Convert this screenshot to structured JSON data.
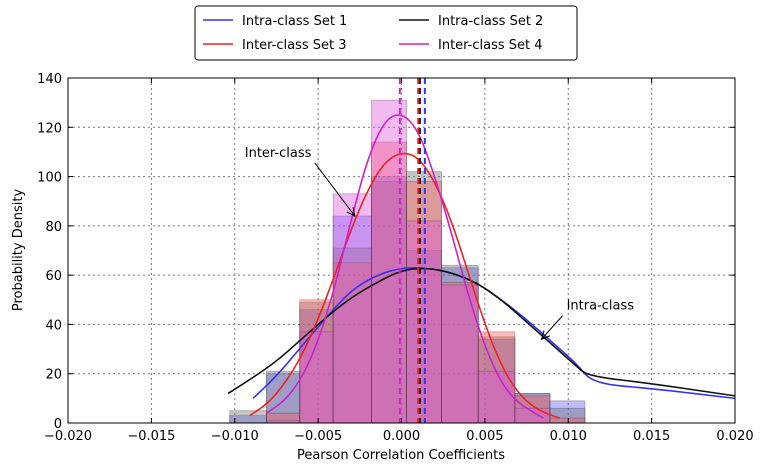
{
  "chart_data": {
    "type": "histogram-kde",
    "xlabel": "Pearson Correlation Coefficients",
    "ylabel": "Probability Density",
    "xlim": [
      -0.02,
      0.02
    ],
    "ylim": [
      0,
      140
    ],
    "grid": true,
    "legend_position": "top-center",
    "xticks": [
      -0.02,
      -0.015,
      -0.01,
      -0.005,
      0.0,
      0.005,
      0.01,
      0.015,
      0.02
    ],
    "xtick_labels": [
      "−0.020",
      "−0.015",
      "−0.010",
      "−0.005",
      "0.000",
      "0.005",
      "0.010",
      "0.015",
      "0.020"
    ],
    "yticks": [
      0,
      20,
      40,
      60,
      80,
      100,
      120,
      140
    ],
    "ytick_labels": [
      "0",
      "20",
      "40",
      "60",
      "80",
      "100",
      "120",
      "140"
    ],
    "annotations": [
      {
        "text": "Inter-class",
        "x": -0.0094,
        "y": 108,
        "arrow_to": [
          -0.0028,
          84
        ]
      },
      {
        "text": "Intra-class",
        "x": 0.0099,
        "y": 46,
        "arrow_to": [
          0.0084,
          34
        ]
      }
    ],
    "series": [
      {
        "name": "Intra-class Set 1",
        "color": "#3333ee",
        "fill": "#5a5aff",
        "mean_line": 0.0014,
        "bins": [
          [
            -0.0103,
            -0.0081,
            3
          ],
          [
            -0.0081,
            -0.0061,
            20
          ],
          [
            -0.0061,
            -0.0041,
            46
          ],
          [
            -0.0041,
            -0.0018,
            84
          ],
          [
            -0.0018,
            0.0003,
            100
          ],
          [
            0.0003,
            0.0024,
            70
          ],
          [
            0.0024,
            0.0046,
            63
          ],
          [
            0.0046,
            0.0068,
            34
          ],
          [
            0.0068,
            0.0089,
            12
          ],
          [
            0.0089,
            0.011,
            9
          ]
        ],
        "kde_x": [
          -0.0089,
          -0.0075,
          -0.006,
          -0.0045,
          -0.003,
          -0.0015,
          0.0,
          0.0015,
          0.003,
          0.0045,
          0.006,
          0.0075,
          0.009,
          0.0105,
          0.0115,
          0.015,
          0.02
        ],
        "kde_y": [
          10,
          19,
          31,
          43,
          54,
          60,
          63,
          63,
          61,
          57,
          50,
          42,
          33,
          24,
          16,
          14,
          10
        ]
      },
      {
        "name": "Intra-class Set 2",
        "color": "#111111",
        "fill": "#6e6e6e",
        "mean_line": 0.0011,
        "bins": [
          [
            -0.0103,
            -0.0081,
            5
          ],
          [
            -0.0081,
            -0.0061,
            21
          ],
          [
            -0.0061,
            -0.0041,
            49
          ],
          [
            -0.0041,
            -0.0018,
            71
          ],
          [
            -0.0018,
            0.0003,
            98
          ],
          [
            0.0003,
            0.0024,
            102
          ],
          [
            0.0024,
            0.0046,
            64
          ],
          [
            0.0046,
            0.0068,
            35
          ],
          [
            0.0068,
            0.0089,
            12
          ],
          [
            0.0089,
            0.011,
            6
          ]
        ],
        "kde_x": [
          -0.0104,
          -0.009,
          -0.0075,
          -0.006,
          -0.0045,
          -0.003,
          -0.0015,
          0.0,
          0.0015,
          0.003,
          0.0045,
          0.006,
          0.0075,
          0.009,
          0.0105,
          0.0112,
          0.015,
          0.02
        ],
        "kde_y": [
          12,
          18,
          25,
          34,
          43,
          51,
          57,
          62,
          63,
          61,
          57,
          50,
          41,
          32,
          23,
          19,
          16,
          11
        ]
      },
      {
        "name": "Inter-class Set 3",
        "color": "#ee2222",
        "fill": "#ff5a5a",
        "mean_line": 0.001,
        "bins": [
          [
            -0.0081,
            -0.0061,
            4
          ],
          [
            -0.0061,
            -0.0041,
            50
          ],
          [
            -0.0041,
            -0.0018,
            65
          ],
          [
            -0.0018,
            0.0003,
            114
          ],
          [
            0.0003,
            0.0024,
            98
          ],
          [
            0.0024,
            0.0046,
            57
          ],
          [
            0.0046,
            0.0068,
            37
          ],
          [
            0.0068,
            0.0089,
            11
          ],
          [
            0.0089,
            0.011,
            2
          ]
        ],
        "kde_x": [
          -0.0091,
          -0.008,
          -0.007,
          -0.006,
          -0.005,
          -0.004,
          -0.003,
          -0.002,
          -0.001,
          0.0,
          0.001,
          0.002,
          0.003,
          0.004,
          0.005,
          0.006,
          0.007,
          0.008,
          0.009,
          0.0095
        ],
        "kde_y": [
          3,
          8,
          16,
          27,
          42,
          60,
          79,
          95,
          106,
          110,
          108,
          98,
          82,
          61,
          40,
          23,
          12,
          6,
          3,
          2
        ]
      },
      {
        "name": "Inter-class Set 4",
        "color": "#cc22cc",
        "fill": "#dd55dd",
        "mean_line": -0.0001,
        "bins": [
          [
            -0.0081,
            -0.0061,
            1
          ],
          [
            -0.0061,
            -0.0041,
            37
          ],
          [
            -0.0041,
            -0.0018,
            93
          ],
          [
            -0.0018,
            0.0003,
            131
          ],
          [
            0.0003,
            0.0024,
            82
          ],
          [
            0.0024,
            0.0046,
            56
          ],
          [
            0.0046,
            0.0068,
            21
          ],
          [
            0.0068,
            0.0089,
            6
          ]
        ],
        "kde_x": [
          -0.0081,
          -0.007,
          -0.006,
          -0.005,
          -0.004,
          -0.003,
          -0.002,
          -0.001,
          0.0,
          0.001,
          0.002,
          0.003,
          0.004,
          0.005,
          0.006,
          0.007,
          0.008,
          0.0085
        ],
        "kde_y": [
          4,
          9,
          18,
          33,
          55,
          83,
          108,
          123,
          126,
          119,
          100,
          77,
          52,
          31,
          16,
          8,
          4,
          2
        ]
      }
    ]
  }
}
